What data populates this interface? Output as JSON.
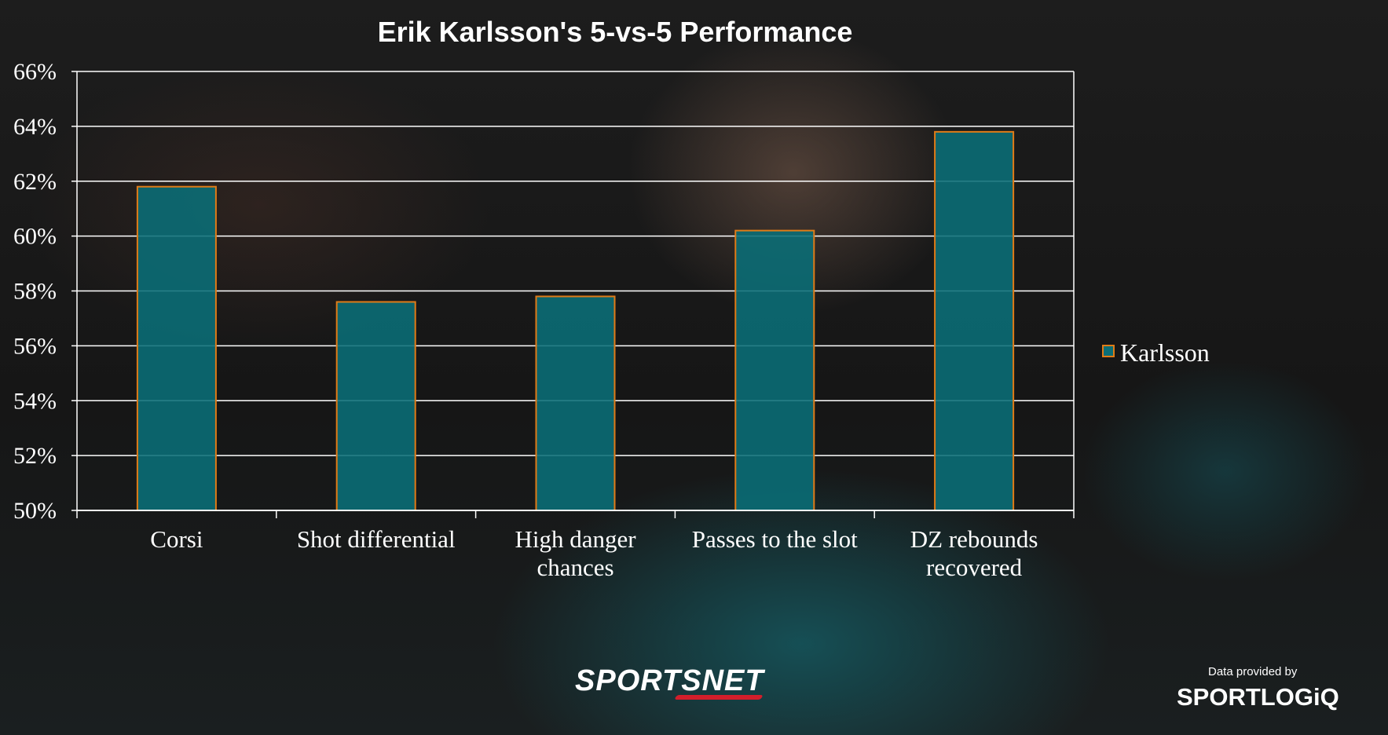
{
  "colors": {
    "bar_fill": "#0a6e77",
    "bar_stroke": "#e07b17",
    "grid": "#ffffff",
    "text": "#ffffff",
    "brand_accent": "#d21e2b"
  },
  "chart_data": {
    "type": "bar",
    "title": "Erik Karlsson's 5-vs-5 Performance",
    "xlabel": "",
    "ylabel": "",
    "categories": [
      [
        "Corsi"
      ],
      [
        "Shot differential"
      ],
      [
        "High danger",
        "chances"
      ],
      [
        "Passes to the slot"
      ],
      [
        "DZ rebounds",
        "recovered"
      ]
    ],
    "series": [
      {
        "name": "Karlsson",
        "values": [
          61.8,
          57.6,
          57.8,
          60.2,
          63.8
        ]
      }
    ],
    "ylim": [
      50,
      66
    ],
    "yticks": [
      "50%",
      "52%",
      "54%",
      "56%",
      "58%",
      "60%",
      "62%",
      "64%",
      "66%"
    ],
    "grid": true,
    "legend": "right"
  },
  "branding": {
    "publisher": "SPORTSNET",
    "credit_label": "Data provided by",
    "credit_source": "SPORTLOGiQ"
  }
}
